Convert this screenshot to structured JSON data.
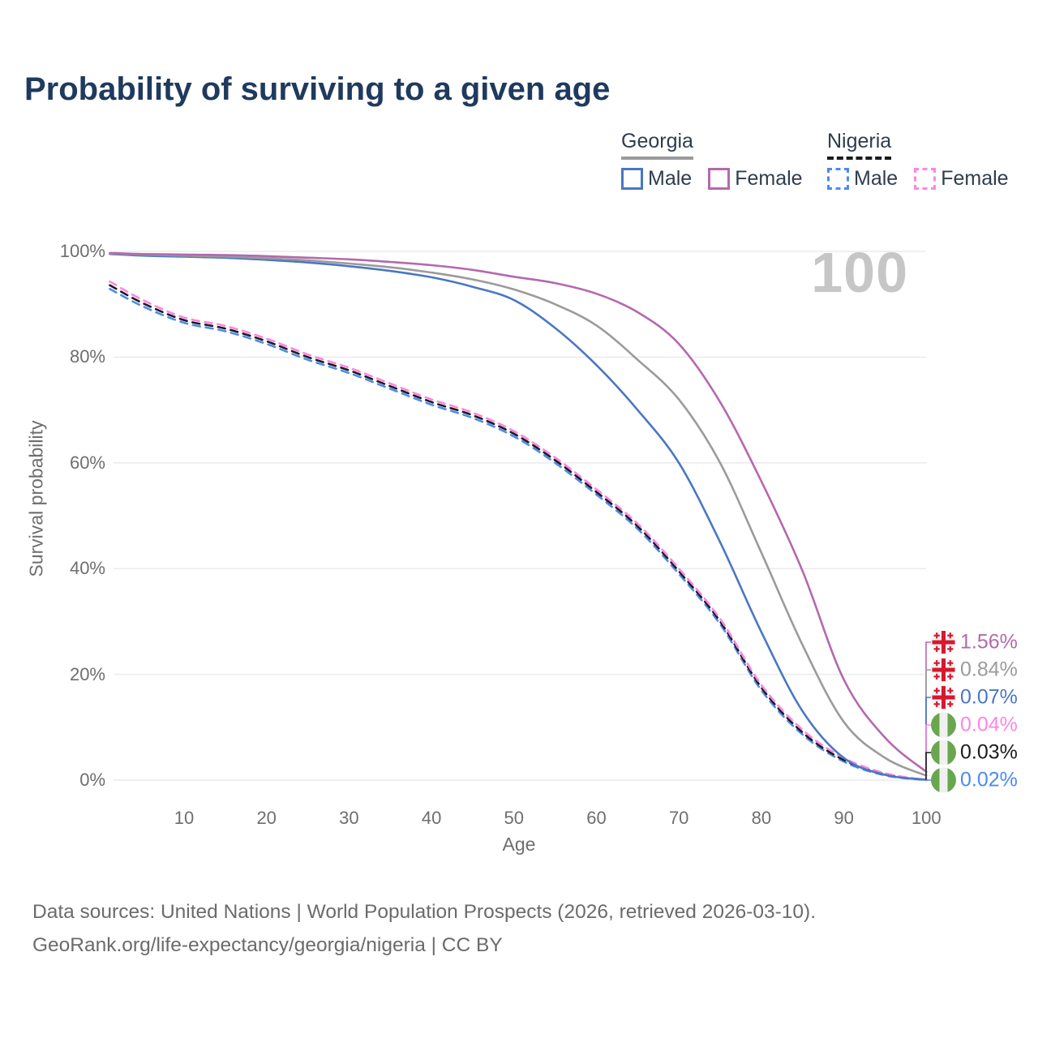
{
  "title": "Probability of surviving to a given age",
  "watermark_age": "100",
  "legend": {
    "groups": [
      {
        "name": "Georgia",
        "line_style": "solid",
        "underline_color": "#9b9b9b",
        "items": [
          {
            "label": "Male",
            "color": "#4a77c4"
          },
          {
            "label": "Female",
            "color": "#b469ae"
          }
        ]
      },
      {
        "name": "Nigeria",
        "line_style": "dashed",
        "underline_color": "#1a1a1a",
        "items": [
          {
            "label": "Male",
            "color": "#4d8af0"
          },
          {
            "label": "Female",
            "color": "#ff85e3"
          }
        ]
      }
    ]
  },
  "chart_data": {
    "type": "line",
    "title": "Probability of surviving to a given age",
    "xlabel": "Age",
    "ylabel": "Survival probability",
    "xlim": [
      1,
      100
    ],
    "ylim": [
      0,
      100
    ],
    "grid": "horizontal",
    "x_ticks": [
      10,
      20,
      30,
      40,
      50,
      60,
      70,
      80,
      90,
      100
    ],
    "y_ticks": [
      "0%",
      "20%",
      "40%",
      "60%",
      "80%",
      "100%"
    ],
    "y_tick_values": [
      0,
      20,
      40,
      60,
      80,
      100
    ],
    "x": [
      1,
      5,
      10,
      15,
      20,
      25,
      30,
      35,
      40,
      45,
      50,
      55,
      60,
      65,
      70,
      75,
      80,
      85,
      90,
      95,
      100
    ],
    "series": [
      {
        "name": "Georgia Female",
        "country": "Georgia",
        "color": "#b469ae",
        "dash": false,
        "end_label": "1.56%",
        "flag": "georgia",
        "values": [
          99.7,
          99.5,
          99.4,
          99.3,
          99.1,
          98.8,
          98.5,
          98.0,
          97.4,
          96.5,
          95.2,
          94.0,
          92.0,
          88.5,
          82.5,
          71.5,
          56.5,
          39.5,
          19.0,
          8.0,
          1.56
        ]
      },
      {
        "name": "Georgia (all)",
        "country": "Georgia",
        "color": "#9b9b9b",
        "dash": false,
        "end_label": "0.84%",
        "flag": "georgia",
        "values": [
          99.6,
          99.4,
          99.2,
          99.0,
          98.7,
          98.3,
          97.7,
          97.0,
          96.0,
          94.7,
          92.8,
          90.0,
          86.0,
          79.5,
          72.0,
          60.0,
          43.0,
          25.5,
          11.0,
          4.2,
          0.84
        ]
      },
      {
        "name": "Georgia Male",
        "country": "Georgia",
        "color": "#4a77c4",
        "dash": false,
        "end_label": "0.07%",
        "flag": "georgia",
        "values": [
          99.5,
          99.2,
          99.0,
          98.8,
          98.4,
          97.9,
          97.2,
          96.3,
          95.1,
          93.3,
          90.8,
          85.5,
          78.5,
          70.0,
          60.0,
          45.0,
          28.0,
          13.0,
          4.2,
          1.0,
          0.07
        ]
      },
      {
        "name": "Nigeria Female",
        "country": "Nigeria",
        "color": "#ff85e3",
        "dash": true,
        "end_label": "0.04%",
        "flag": "nigeria",
        "values": [
          94.3,
          90.8,
          87.5,
          85.9,
          83.5,
          80.5,
          78.0,
          75.0,
          72.0,
          69.5,
          66.0,
          61.0,
          55.0,
          48.5,
          40.0,
          30.5,
          18.0,
          9.5,
          4.2,
          1.3,
          0.04
        ]
      },
      {
        "name": "Nigeria (all)",
        "country": "Nigeria",
        "color": "#1c1c1c",
        "dash": true,
        "end_label": "0.03%",
        "flag": "nigeria",
        "values": [
          93.6,
          90.2,
          87.0,
          85.4,
          83.0,
          80.0,
          77.5,
          74.5,
          71.5,
          69.0,
          65.5,
          60.5,
          54.5,
          48.0,
          39.5,
          30.0,
          17.5,
          9.0,
          3.8,
          1.1,
          0.03
        ]
      },
      {
        "name": "Nigeria Male",
        "country": "Nigeria",
        "color": "#4d8af0",
        "dash": true,
        "end_label": "0.02%",
        "flag": "nigeria",
        "values": [
          92.9,
          89.6,
          86.5,
          84.9,
          82.5,
          79.5,
          77.0,
          74.0,
          71.0,
          68.5,
          65.0,
          60.0,
          54.0,
          47.5,
          39.0,
          29.5,
          17.0,
          8.6,
          3.5,
          0.9,
          0.02
        ]
      }
    ]
  },
  "footer": {
    "line1": "Data sources: United Nations | World Population Prospects (2026, retrieved 2026-03-10).",
    "line2": "GeoRank.org/life-expectancy/georgia/nigeria | CC BY"
  },
  "colors": {
    "title": "#1f3a5e",
    "axis_text": "#6e6e6e",
    "gridline": "#ececec",
    "watermark": "#c6c6c6",
    "georgia_flag_red": "#d7182f",
    "nigeria_flag_green": "#69a74e"
  }
}
